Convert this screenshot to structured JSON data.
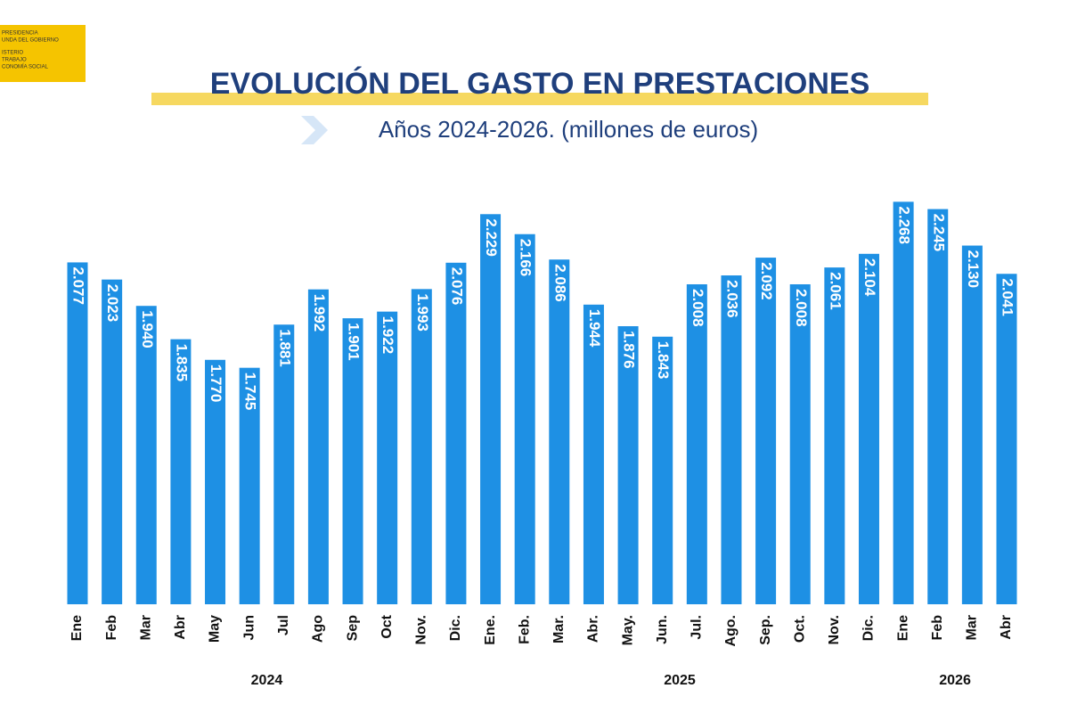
{
  "logo": [
    "PRESIDENCIA",
    "UNDA DEL GOBIERNO",
    "ISTERIO",
    "TRABAJO",
    "CONOMÍA SOCIAL"
  ],
  "chart_data": {
    "type": "bar",
    "title": "EVOLUCIÓN DEL GASTO EN PRESTACIONES",
    "subtitle": "Años 2024-2026. (millones de euros)",
    "categories": [
      "Ene",
      "Feb",
      "Mar",
      "Abr",
      "May",
      "Jun",
      "Jul",
      "Ago",
      "Sep",
      "Oct",
      "Nov.",
      "Dic.",
      "Ene.",
      "Feb.",
      "Mar.",
      "Abr.",
      "May.",
      "Jun.",
      "Jul.",
      "Ago.",
      "Sep.",
      "Oct.",
      "Nov.",
      "Dic.",
      "Ene",
      "Feb",
      "Mar",
      "Abr"
    ],
    "groups": [
      {
        "name": "2024",
        "size": 12
      },
      {
        "name": "2025",
        "size": 12
      },
      {
        "name": "2026",
        "size": 4
      }
    ],
    "values": [
      2077,
      2023,
      1940,
      1835,
      1770,
      1745,
      1881,
      1992,
      1901,
      1922,
      1993,
      2076,
      2229,
      2166,
      2086,
      1944,
      1876,
      1843,
      2008,
      2036,
      2092,
      2008,
      2061,
      2104,
      2268,
      2245,
      2130,
      2041
    ],
    "value_labels": [
      "2.077",
      "2.023",
      "1.940",
      "1.835",
      "1.770",
      "1.745",
      "1.881",
      "1.992",
      "1.901",
      "1.922",
      "1.993",
      "2.076",
      "2.229",
      "2.166",
      "2.086",
      "1.944",
      "1.876",
      "1.843",
      "2.008",
      "2.036",
      "2.092",
      "2.008",
      "2.061",
      "2.104",
      "2.268",
      "2.245",
      "2.130",
      "2.041"
    ],
    "color": "#1e90e4",
    "ylim": [
      1000,
      2300
    ]
  }
}
